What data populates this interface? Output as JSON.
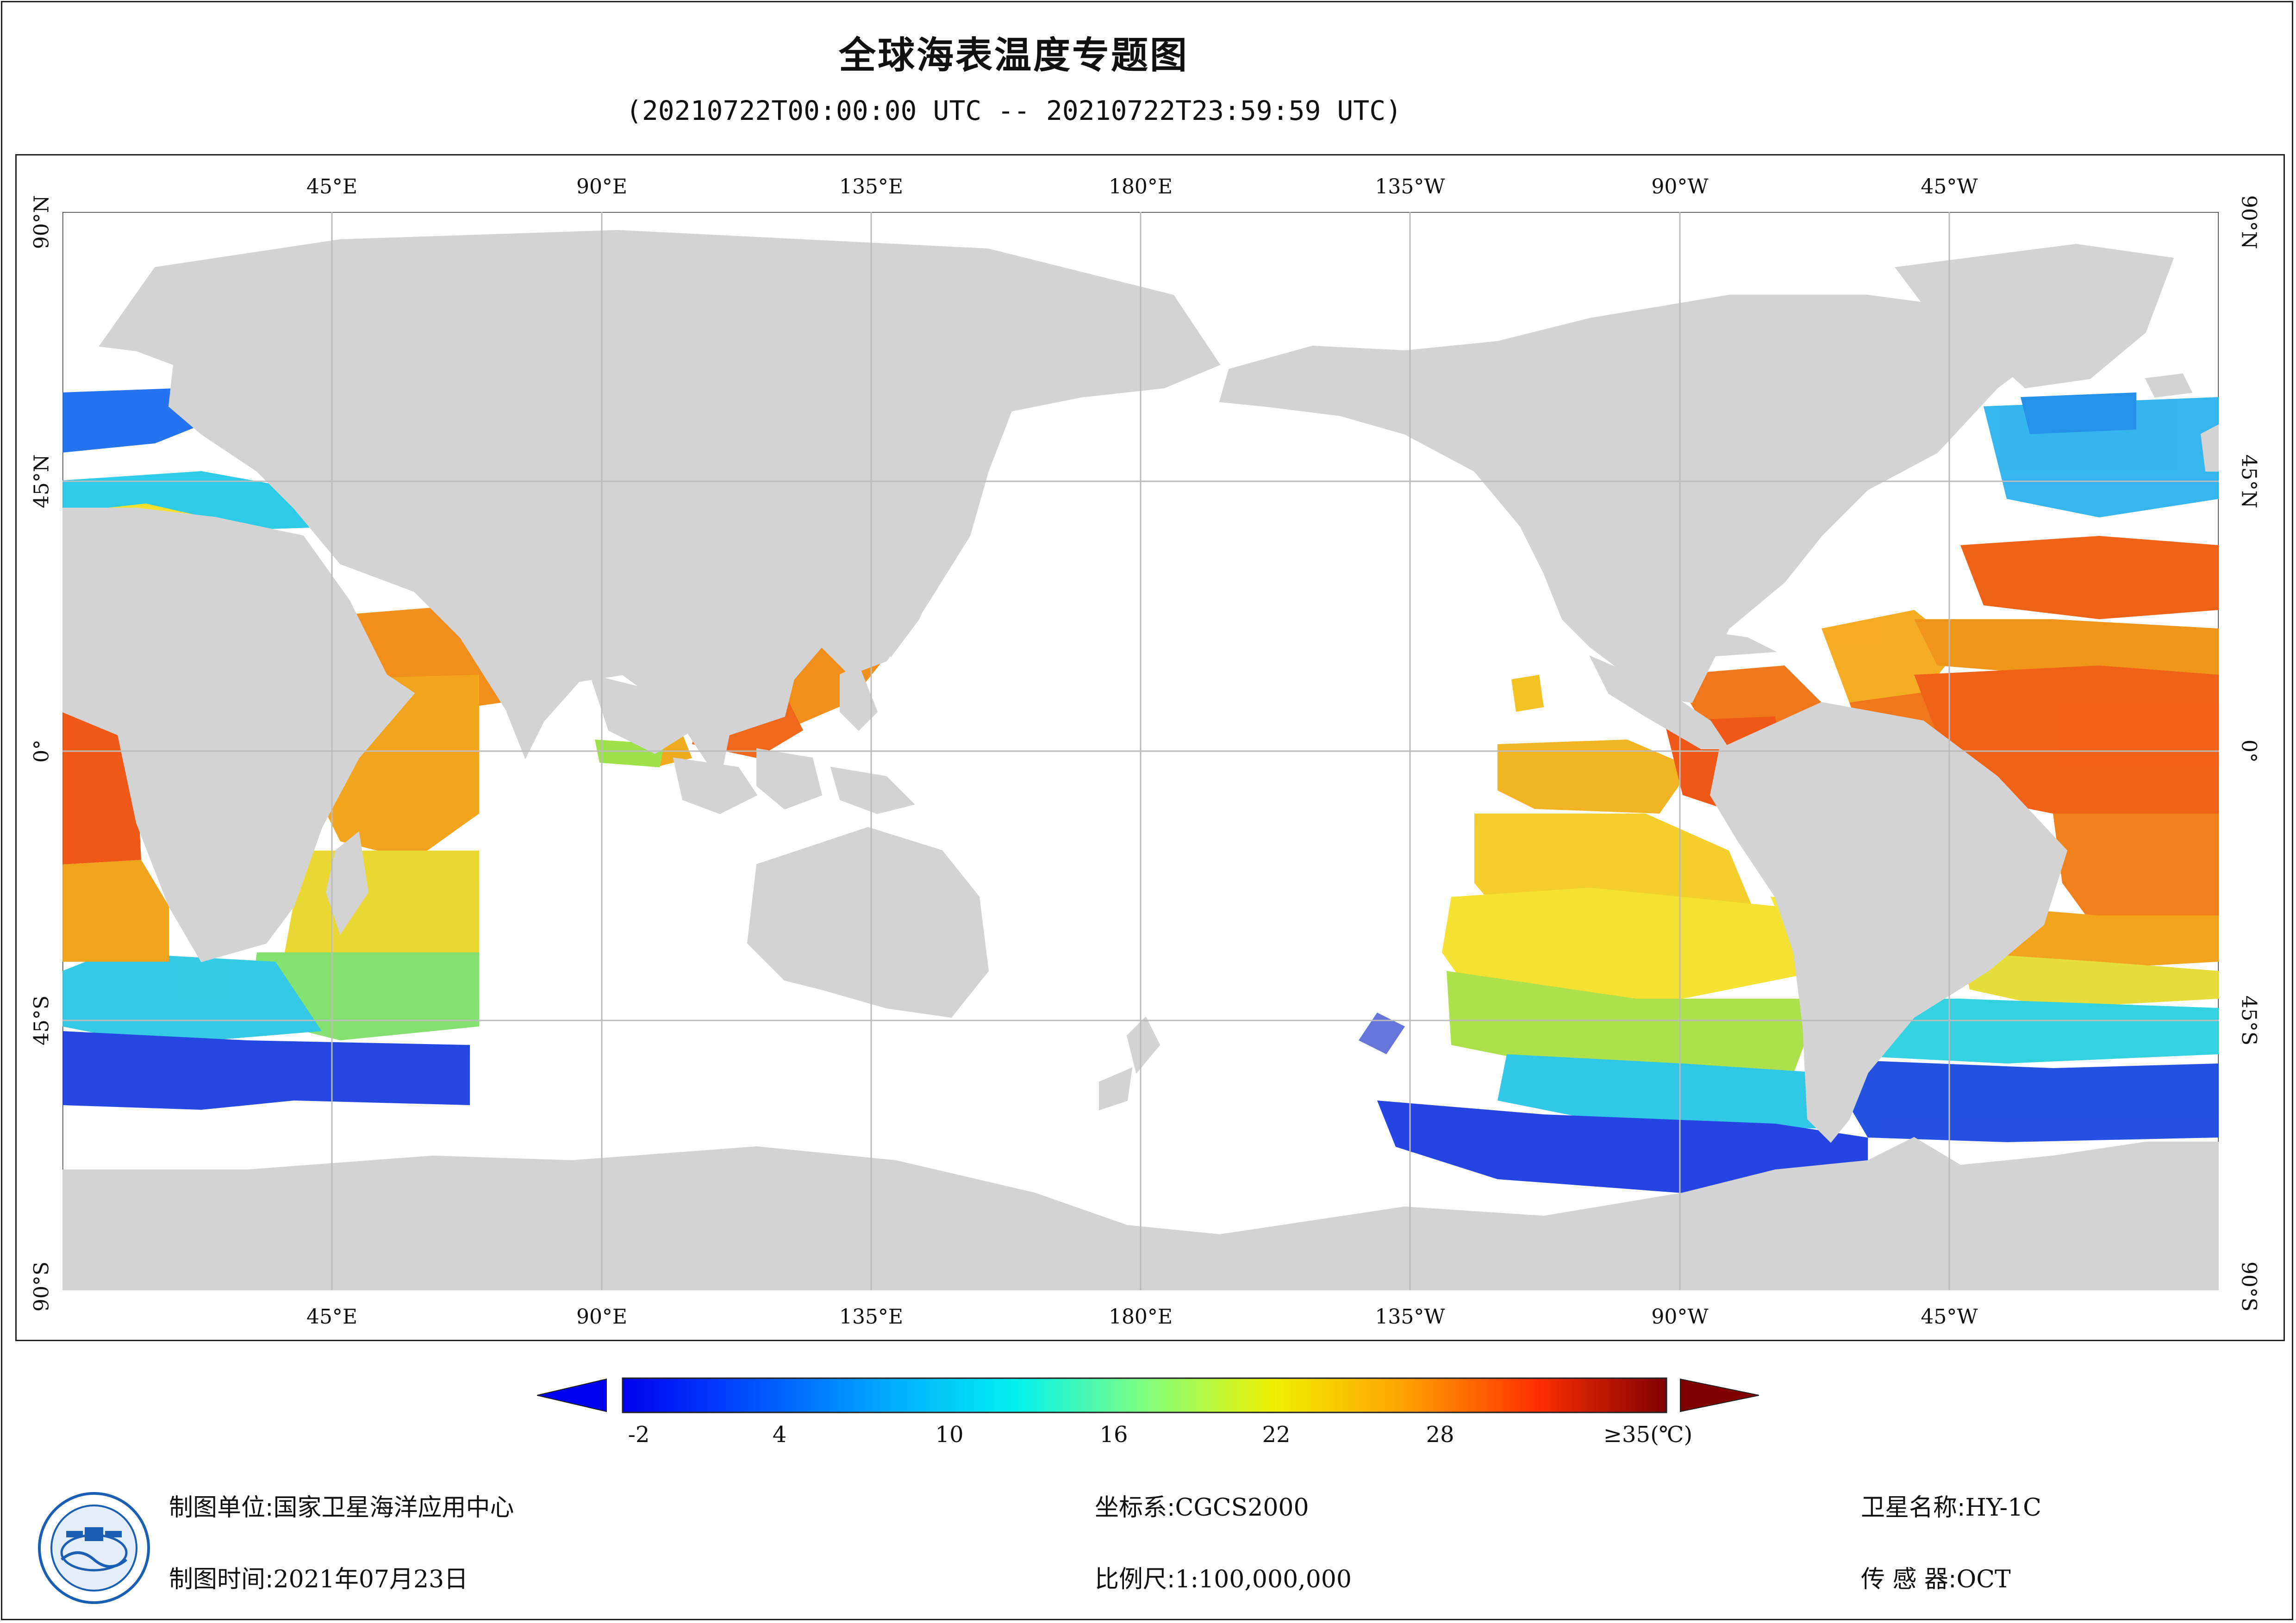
{
  "header": {
    "title": "全球海表温度专题图",
    "time_range": "(20210722T00:00:00 UTC -- 20210722T23:59:59 UTC)"
  },
  "map": {
    "longitude_ticks": [
      "45°E",
      "90°E",
      "135°E",
      "180°E",
      "135°W",
      "90°W",
      "45°W"
    ],
    "latitude_ticks": [
      "90°N",
      "45°N",
      "0°",
      "45°S",
      "90°S"
    ],
    "land_color": "#d3d3d3",
    "ocean_color": "#ffffff",
    "grid_color": "#bbbbbb"
  },
  "colorbar": {
    "labels": [
      "-2",
      "4",
      "10",
      "16",
      "22",
      "28",
      "≥35(℃)"
    ],
    "min": -2,
    "max": 35,
    "colormap": "jet",
    "extend": "both"
  },
  "footer": {
    "producer_label": "制图单位:",
    "producer": "国家卫星海洋应用中心",
    "date_label": "制图时间:",
    "date": "2021年07月23日",
    "crs_label": "坐标系:",
    "crs": "CGCS2000",
    "scale_label": "比例尺:",
    "scale": "1:100,000,000",
    "satellite_label": "卫星名称:",
    "satellite": "HY-1C",
    "sensor_label": "传 感 器:",
    "sensor": "OCT"
  },
  "logo": {
    "icon": "nsoas-emblem-icon"
  }
}
